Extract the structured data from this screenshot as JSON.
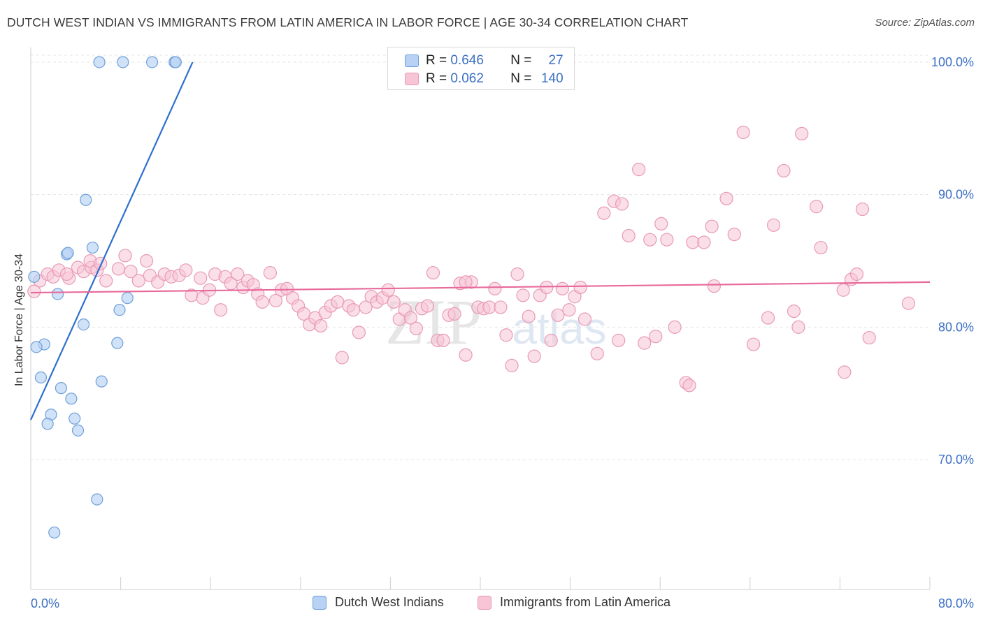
{
  "title": "DUTCH WEST INDIAN VS IMMIGRANTS FROM LATIN AMERICA IN LABOR FORCE | AGE 30-34 CORRELATION CHART",
  "source": "Source: ZipAtlas.com",
  "watermark": {
    "zip": "ZIP",
    "atlas": "atlas"
  },
  "legend": {
    "series1": {
      "r_label": "R =",
      "r_value": "0.646",
      "n_label": "N =",
      "n_value": "27"
    },
    "series2": {
      "r_label": "R =",
      "r_value": "0.062",
      "n_label": "N =",
      "n_value": "140"
    }
  },
  "colors": {
    "blue_fill": "#b7d2f4",
    "blue_stroke": "#6f9fd8",
    "blue_line": "#2f6fcf",
    "pink_fill": "#f7c5d5",
    "pink_stroke": "#e89ab4",
    "pink_line": "#e8699a",
    "tick_label": "#3b6fc4",
    "grid": "#e4e4e4"
  },
  "chart_data": {
    "type": "scatter",
    "title": "DUTCH WEST INDIAN VS IMMIGRANTS FROM LATIN AMERICA IN LABOR FORCE | AGE 30-34 CORRELATION CHART",
    "xlabel": "",
    "ylabel": "In Labor Force | Age 30-34",
    "xlim": [
      0,
      80
    ],
    "ylim": [
      60.2,
      101
    ],
    "x_tick_labels": [
      "0.0%",
      "80.0%"
    ],
    "y_ticks": [
      70,
      80,
      90,
      100
    ],
    "y_tick_labels": [
      "70.0%",
      "80.0%",
      "90.0%",
      "100.0%"
    ],
    "grid": true,
    "legend_position": "top-center",
    "series": [
      {
        "name": "Dutch West Indians",
        "trend": {
          "x": [
            0,
            14.4
          ],
          "y": [
            73.0,
            100.0
          ]
        },
        "points": [
          {
            "x": 6.1,
            "y": 100
          },
          {
            "x": 8.2,
            "y": 100
          },
          {
            "x": 10.8,
            "y": 100
          },
          {
            "x": 12.8,
            "y": 100
          },
          {
            "x": 12.9,
            "y": 100
          },
          {
            "x": 4.9,
            "y": 89.6
          },
          {
            "x": 3.2,
            "y": 85.5
          },
          {
            "x": 3.3,
            "y": 85.6
          },
          {
            "x": 5.5,
            "y": 86.0
          },
          {
            "x": 0.3,
            "y": 83.8
          },
          {
            "x": 2.4,
            "y": 82.5
          },
          {
            "x": 8.6,
            "y": 82.2
          },
          {
            "x": 7.9,
            "y": 81.3
          },
          {
            "x": 4.7,
            "y": 80.2
          },
          {
            "x": 1.2,
            "y": 78.7
          },
          {
            "x": 0.5,
            "y": 78.5
          },
          {
            "x": 7.7,
            "y": 78.8
          },
          {
            "x": 0.9,
            "y": 76.2
          },
          {
            "x": 2.7,
            "y": 75.4
          },
          {
            "x": 6.3,
            "y": 75.9
          },
          {
            "x": 3.6,
            "y": 74.6
          },
          {
            "x": 1.8,
            "y": 73.4
          },
          {
            "x": 1.5,
            "y": 72.7
          },
          {
            "x": 3.9,
            "y": 73.1
          },
          {
            "x": 4.2,
            "y": 72.2
          },
          {
            "x": 5.9,
            "y": 67.0
          },
          {
            "x": 2.1,
            "y": 64.5
          }
        ]
      },
      {
        "name": "Immigrants from Latin America",
        "trend": {
          "x": [
            0,
            80
          ],
          "y": [
            82.6,
            83.4
          ]
        },
        "points": [
          {
            "x": 0.3,
            "y": 82.7
          },
          {
            "x": 0.8,
            "y": 83.5
          },
          {
            "x": 1.5,
            "y": 84.0
          },
          {
            "x": 2.0,
            "y": 83.8
          },
          {
            "x": 2.5,
            "y": 84.3
          },
          {
            "x": 3.4,
            "y": 83.7
          },
          {
            "x": 3.2,
            "y": 84.0
          },
          {
            "x": 4.2,
            "y": 84.5
          },
          {
            "x": 4.7,
            "y": 84.2
          },
          {
            "x": 5.4,
            "y": 84.5
          },
          {
            "x": 5.3,
            "y": 85.0
          },
          {
            "x": 5.9,
            "y": 84.3
          },
          {
            "x": 6.2,
            "y": 84.8
          },
          {
            "x": 6.7,
            "y": 83.5
          },
          {
            "x": 7.8,
            "y": 84.4
          },
          {
            "x": 8.4,
            "y": 85.4
          },
          {
            "x": 8.9,
            "y": 84.2
          },
          {
            "x": 9.6,
            "y": 83.5
          },
          {
            "x": 10.3,
            "y": 85.0
          },
          {
            "x": 10.6,
            "y": 83.9
          },
          {
            "x": 11.3,
            "y": 83.4
          },
          {
            "x": 11.9,
            "y": 84.0
          },
          {
            "x": 12.5,
            "y": 83.8
          },
          {
            "x": 13.2,
            "y": 83.9
          },
          {
            "x": 13.8,
            "y": 84.3
          },
          {
            "x": 14.3,
            "y": 82.4
          },
          {
            "x": 15.1,
            "y": 83.7
          },
          {
            "x": 15.3,
            "y": 82.2
          },
          {
            "x": 15.9,
            "y": 82.8
          },
          {
            "x": 16.4,
            "y": 84.0
          },
          {
            "x": 16.9,
            "y": 81.3
          },
          {
            "x": 17.3,
            "y": 83.8
          },
          {
            "x": 17.8,
            "y": 83.3
          },
          {
            "x": 18.4,
            "y": 84.0
          },
          {
            "x": 18.9,
            "y": 83.0
          },
          {
            "x": 19.3,
            "y": 83.5
          },
          {
            "x": 19.8,
            "y": 83.2
          },
          {
            "x": 20.2,
            "y": 82.5
          },
          {
            "x": 20.6,
            "y": 81.9
          },
          {
            "x": 21.3,
            "y": 84.1
          },
          {
            "x": 21.8,
            "y": 82.0
          },
          {
            "x": 22.3,
            "y": 82.8
          },
          {
            "x": 22.8,
            "y": 82.9
          },
          {
            "x": 23.3,
            "y": 82.2
          },
          {
            "x": 23.8,
            "y": 81.6
          },
          {
            "x": 24.3,
            "y": 81.0
          },
          {
            "x": 24.8,
            "y": 80.2
          },
          {
            "x": 25.3,
            "y": 80.7
          },
          {
            "x": 25.8,
            "y": 80.1
          },
          {
            "x": 26.2,
            "y": 81.1
          },
          {
            "x": 26.7,
            "y": 81.6
          },
          {
            "x": 27.3,
            "y": 81.9
          },
          {
            "x": 27.7,
            "y": 77.7
          },
          {
            "x": 28.3,
            "y": 81.6
          },
          {
            "x": 28.7,
            "y": 81.3
          },
          {
            "x": 29.2,
            "y": 79.6
          },
          {
            "x": 29.8,
            "y": 81.5
          },
          {
            "x": 30.3,
            "y": 82.3
          },
          {
            "x": 30.8,
            "y": 81.9
          },
          {
            "x": 31.3,
            "y": 82.2
          },
          {
            "x": 31.8,
            "y": 82.8
          },
          {
            "x": 32.3,
            "y": 81.9
          },
          {
            "x": 32.8,
            "y": 80.6
          },
          {
            "x": 33.3,
            "y": 81.3
          },
          {
            "x": 33.8,
            "y": 80.7
          },
          {
            "x": 34.3,
            "y": 79.9
          },
          {
            "x": 34.8,
            "y": 81.4
          },
          {
            "x": 35.3,
            "y": 81.6
          },
          {
            "x": 35.8,
            "y": 84.1
          },
          {
            "x": 36.2,
            "y": 79.0
          },
          {
            "x": 36.7,
            "y": 79.0
          },
          {
            "x": 37.2,
            "y": 80.9
          },
          {
            "x": 37.7,
            "y": 81.0
          },
          {
            "x": 38.2,
            "y": 83.3
          },
          {
            "x": 38.7,
            "y": 77.9
          },
          {
            "x": 39.2,
            "y": 83.4
          },
          {
            "x": 39.8,
            "y": 81.5
          },
          {
            "x": 40.3,
            "y": 81.4
          },
          {
            "x": 40.8,
            "y": 81.5
          },
          {
            "x": 41.3,
            "y": 82.9
          },
          {
            "x": 41.8,
            "y": 81.5
          },
          {
            "x": 42.3,
            "y": 79.4
          },
          {
            "x": 42.8,
            "y": 77.1
          },
          {
            "x": 43.3,
            "y": 84.0
          },
          {
            "x": 43.8,
            "y": 82.4
          },
          {
            "x": 44.3,
            "y": 80.8
          },
          {
            "x": 44.8,
            "y": 77.8
          },
          {
            "x": 45.3,
            "y": 82.4
          },
          {
            "x": 45.9,
            "y": 83.0
          },
          {
            "x": 46.3,
            "y": 79.0
          },
          {
            "x": 46.9,
            "y": 80.9
          },
          {
            "x": 47.3,
            "y": 82.9
          },
          {
            "x": 47.9,
            "y": 81.3
          },
          {
            "x": 48.4,
            "y": 82.3
          },
          {
            "x": 48.9,
            "y": 83.0
          },
          {
            "x": 49.3,
            "y": 80.6
          },
          {
            "x": 50.4,
            "y": 78.0
          },
          {
            "x": 51.0,
            "y": 88.6
          },
          {
            "x": 51.9,
            "y": 89.5
          },
          {
            "x": 52.3,
            "y": 79.0
          },
          {
            "x": 52.6,
            "y": 89.3
          },
          {
            "x": 53.2,
            "y": 86.9
          },
          {
            "x": 54.1,
            "y": 91.9
          },
          {
            "x": 54.6,
            "y": 78.8
          },
          {
            "x": 55.1,
            "y": 86.6
          },
          {
            "x": 55.6,
            "y": 79.3
          },
          {
            "x": 56.1,
            "y": 87.8
          },
          {
            "x": 56.6,
            "y": 86.6
          },
          {
            "x": 57.3,
            "y": 80.0
          },
          {
            "x": 58.3,
            "y": 75.8
          },
          {
            "x": 58.6,
            "y": 75.6
          },
          {
            "x": 58.9,
            "y": 86.4
          },
          {
            "x": 59.9,
            "y": 86.4
          },
          {
            "x": 60.6,
            "y": 87.6
          },
          {
            "x": 60.8,
            "y": 83.1
          },
          {
            "x": 61.9,
            "y": 89.7
          },
          {
            "x": 62.6,
            "y": 87.0
          },
          {
            "x": 63.4,
            "y": 94.7
          },
          {
            "x": 64.3,
            "y": 78.7
          },
          {
            "x": 65.6,
            "y": 80.7
          },
          {
            "x": 66.1,
            "y": 87.7
          },
          {
            "x": 67.0,
            "y": 91.8
          },
          {
            "x": 67.9,
            "y": 81.2
          },
          {
            "x": 68.3,
            "y": 80.0
          },
          {
            "x": 68.6,
            "y": 94.6
          },
          {
            "x": 69.9,
            "y": 89.1
          },
          {
            "x": 70.3,
            "y": 86.0
          },
          {
            "x": 72.4,
            "y": 76.6
          },
          {
            "x": 72.3,
            "y": 82.8
          },
          {
            "x": 73.0,
            "y": 83.6
          },
          {
            "x": 73.5,
            "y": 84.0
          },
          {
            "x": 74.0,
            "y": 88.9
          },
          {
            "x": 74.6,
            "y": 79.2
          },
          {
            "x": 78.1,
            "y": 81.8
          },
          {
            "x": 38.7,
            "y": 83.4
          }
        ]
      }
    ]
  }
}
